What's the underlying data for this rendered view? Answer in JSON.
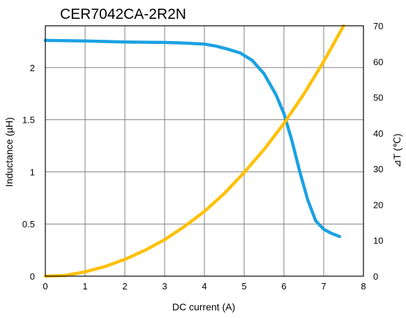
{
  "chart_data": {
    "type": "line",
    "title": "CER7042CA-2R2N",
    "xlabel": "DC current (A)",
    "ylabel": "Inductance (µH)",
    "y2label": "⊿T (℃)",
    "xlim": [
      0,
      8
    ],
    "ylim": [
      0,
      2.4
    ],
    "y2lim": [
      0,
      70
    ],
    "x_ticks": [
      "0",
      "1",
      "2",
      "3",
      "4",
      "5",
      "6",
      "7",
      "8"
    ],
    "y_ticks": [
      "0",
      "0.5",
      "1",
      "1.5",
      "2"
    ],
    "y2_ticks": [
      "0",
      "10",
      "20",
      "30",
      "40",
      "50",
      "60",
      "70"
    ],
    "grid": true,
    "series": [
      {
        "axis": "left",
        "color": "#1ba1e2",
        "x": [
          0,
          1,
          2,
          3,
          3.5,
          4,
          4.3,
          4.6,
          4.9,
          5.2,
          5.5,
          5.8,
          6.0,
          6.2,
          6.4,
          6.6,
          6.8,
          7.0,
          7.2,
          7.4
        ],
        "y": [
          2.26,
          2.255,
          2.245,
          2.24,
          2.235,
          2.225,
          2.205,
          2.175,
          2.14,
          2.07,
          1.94,
          1.74,
          1.56,
          1.3,
          1.0,
          0.73,
          0.53,
          0.45,
          0.41,
          0.38
        ]
      },
      {
        "axis": "right",
        "color": "#ffc000",
        "x": [
          0,
          0.5,
          1,
          1.5,
          2,
          2.5,
          3,
          3.5,
          4,
          4.5,
          5,
          5.5,
          6,
          6.5,
          7,
          7.5
        ],
        "y": [
          0,
          0.2,
          1.2,
          2.7,
          4.7,
          7.2,
          10.2,
          13.9,
          18.1,
          23.1,
          29,
          35.4,
          42.7,
          50.9,
          60,
          70
        ]
      }
    ]
  }
}
